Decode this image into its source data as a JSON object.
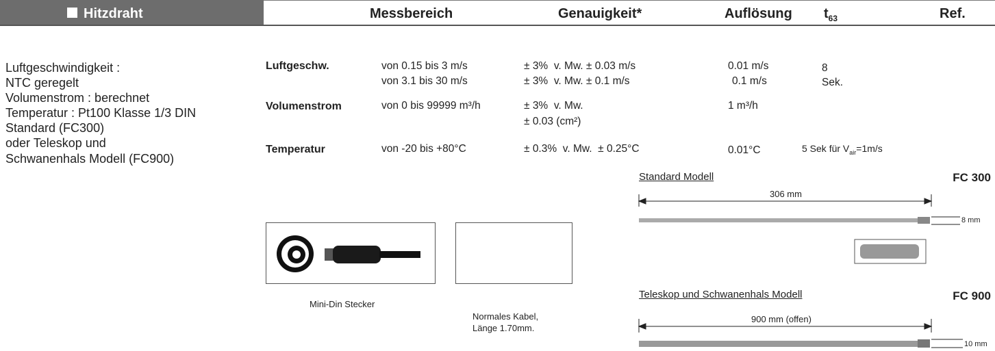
{
  "header": {
    "title": "Hitzdraht",
    "measuring_range": "Messbereich",
    "accuracy": "Genauigkeit*",
    "resolution": "Auflösung",
    "t63": {
      "main": "t",
      "sub": "63"
    },
    "ref": "Ref."
  },
  "description": [
    "Luftgeschwindigkeit :",
    "NTC geregelt",
    "Volumenstrom : berechnet",
    "Temperatur : Pt100 Klasse 1/3 DIN",
    "Standard (FC300)",
    "oder Teleskop und",
    "Schwanenhals Modell (FC900)"
  ],
  "rows": [
    {
      "label": "Luftgeschw.",
      "range": [
        "von 0.15 bis 3 m/s",
        "von 3.1 bis 30 m/s"
      ],
      "accuracy": [
        "± 3%  v. Mw. ± 0.03 m/s",
        "± 3%  v. Mw. ± 0.1 m/s"
      ],
      "resolution": [
        "0.01 m/s",
        "0.1 m/s"
      ],
      "t63": [
        "8",
        "Sek."
      ]
    },
    {
      "label": "Volumenstrom",
      "range": [
        "von 0 bis 99999 m³/h"
      ],
      "accuracy": [
        "± 3%  v. Mw.",
        "± 0.03 (cm²)"
      ],
      "resolution": [
        "1 m³/h"
      ]
    },
    {
      "label": "Temperatur",
      "range": [
        "von -20 bis +80°C"
      ],
      "accuracy": [
        "± 0.3%  v. Mw.  ± 0.25°C"
      ],
      "resolution": [
        "0.01°C"
      ],
      "t63_parts": [
        "5 Sek für V",
        "air",
        "=1m/s"
      ]
    }
  ],
  "accessories": {
    "connector": "Mini-Din Stecker",
    "cable": [
      "Normales Kabel,",
      "Länge 1.70mm."
    ]
  },
  "probes": [
    {
      "title": "Standard Modell",
      "ref": "FC 300",
      "length": "306 mm",
      "diameter": "8 mm"
    },
    {
      "title": "Teleskop und Schwanenhals Modell",
      "ref": "FC 900",
      "length": "900 mm (offen)",
      "diameter": "10 mm"
    }
  ]
}
